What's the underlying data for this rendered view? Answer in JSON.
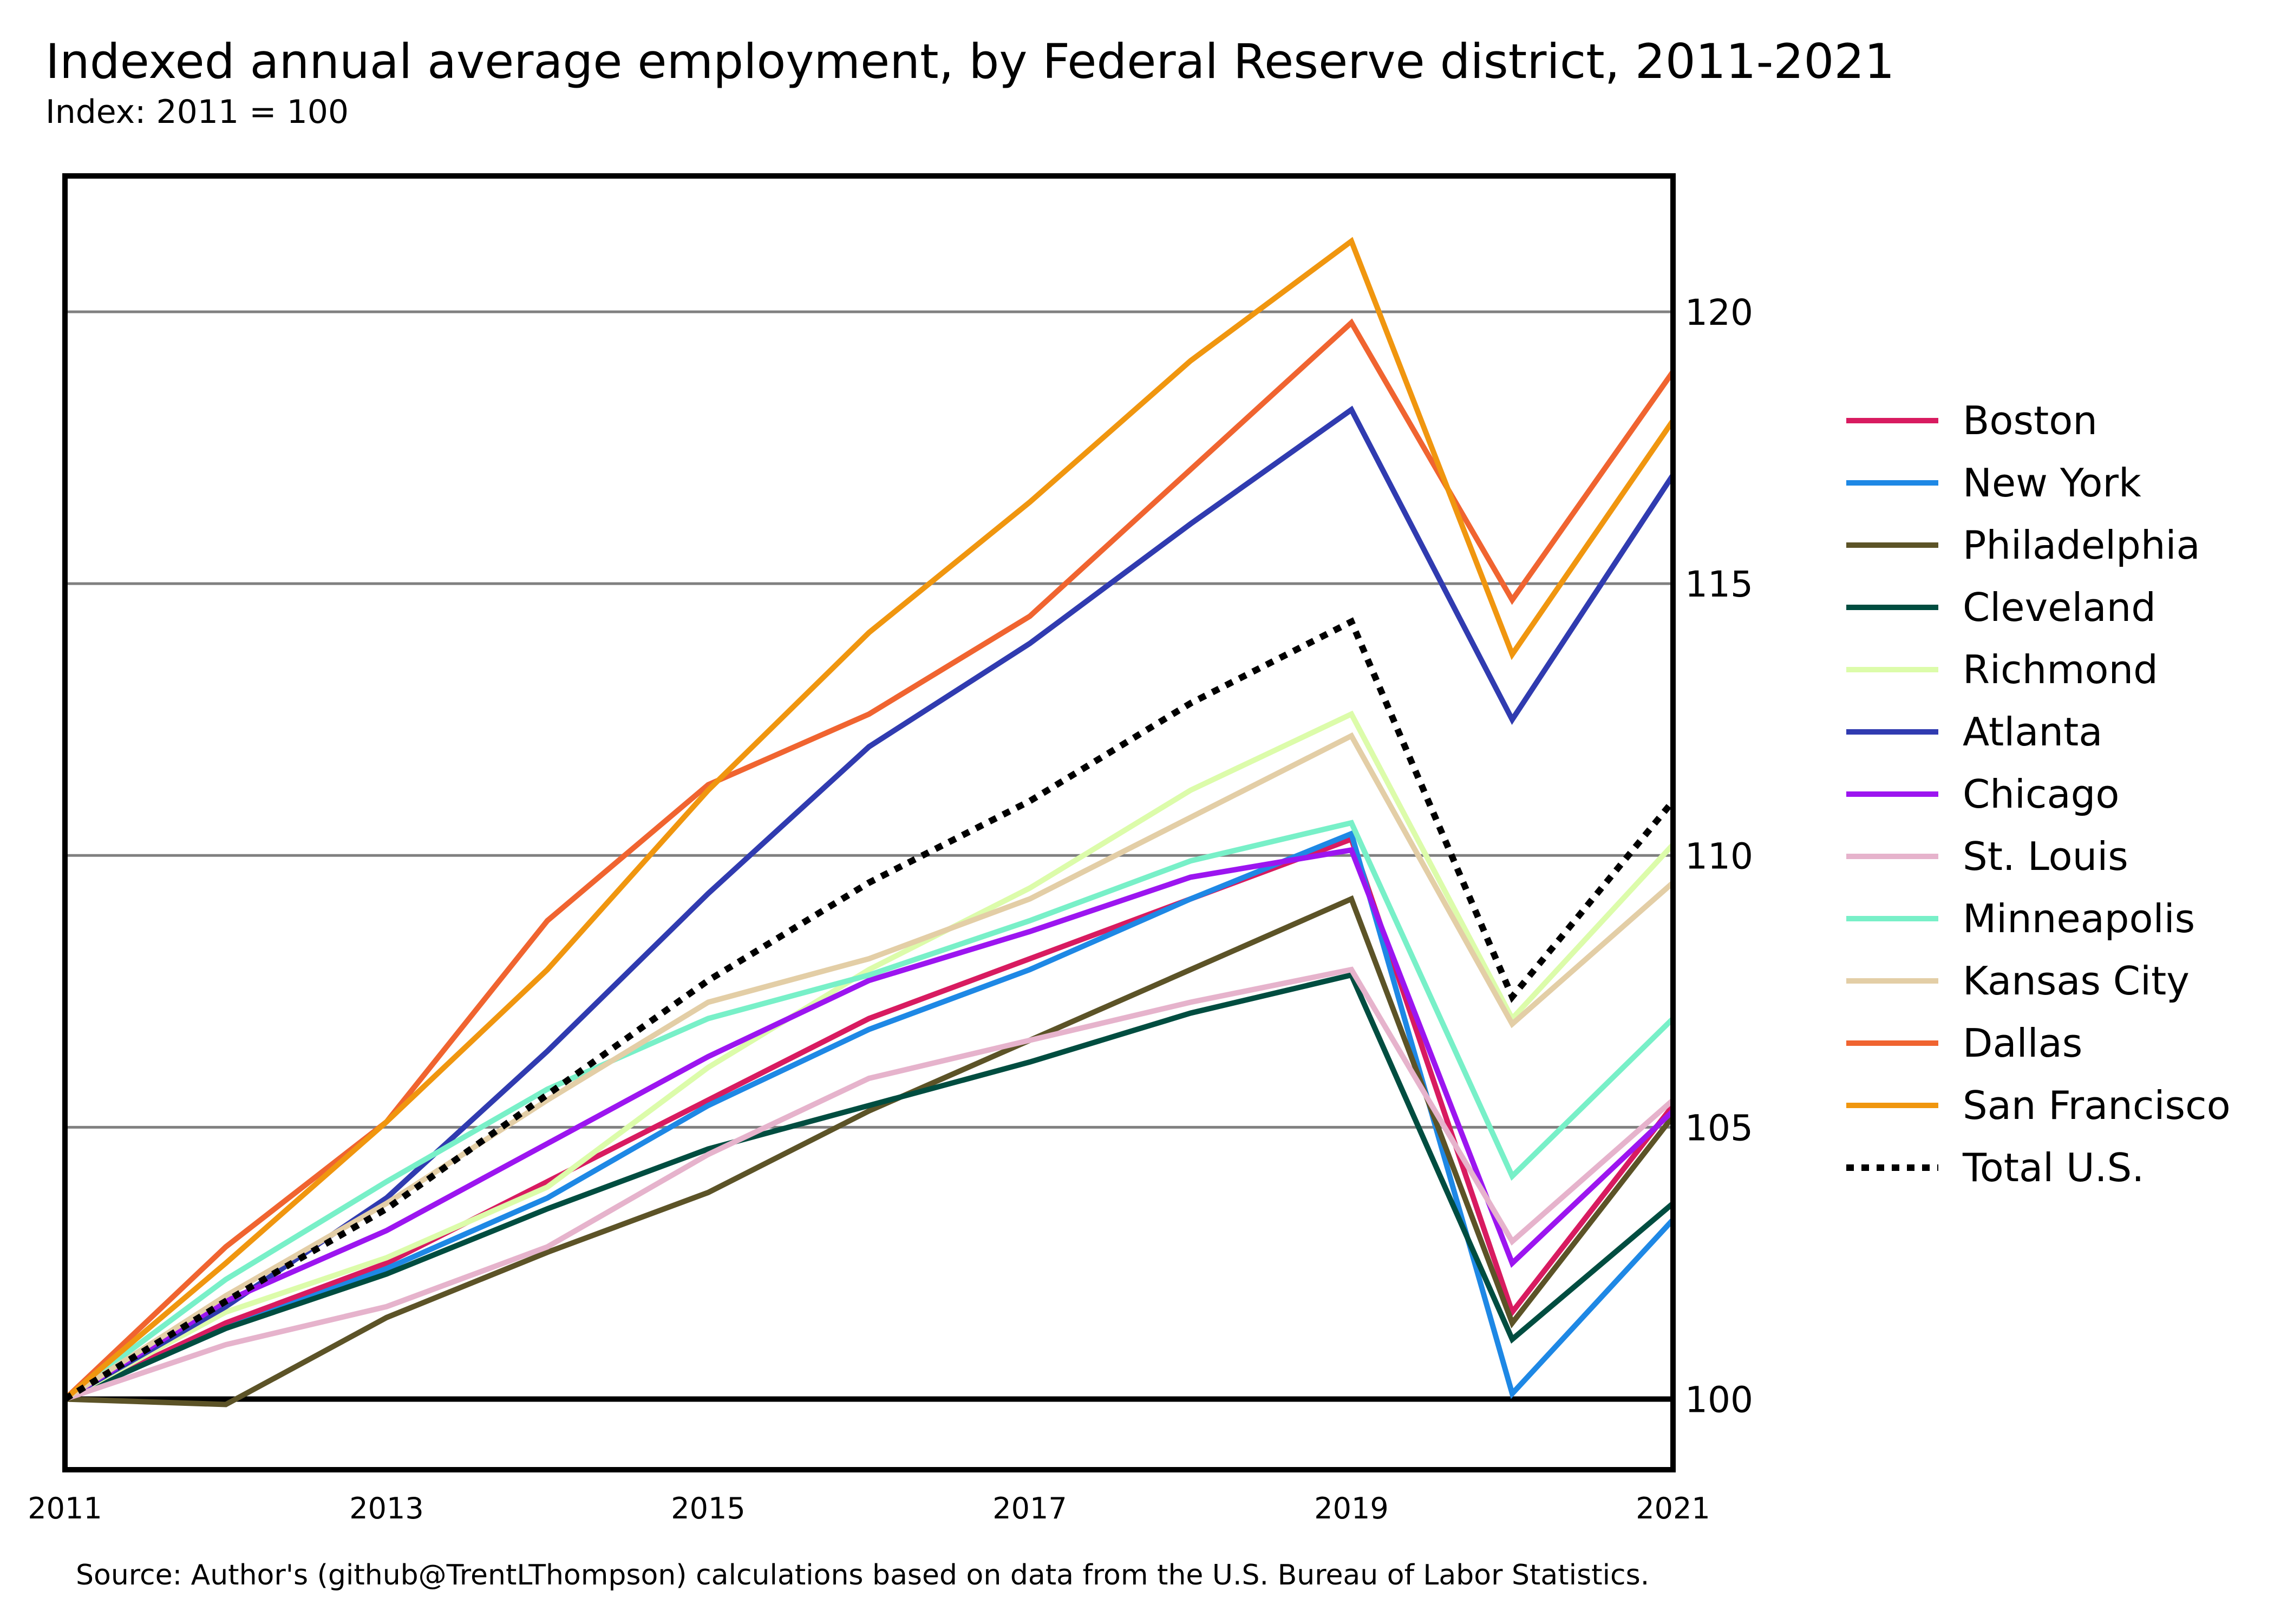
{
  "chart_data": {
    "type": "line",
    "title": "Indexed annual average employment, by Federal Reserve district, 2011-2021",
    "subtitle": "Index: 2011 = 100",
    "source": "Source: Author's (github@TrentLThompson) calculations based on data from the U.S. Bureau of Labor Statistics.",
    "xlabel": "",
    "ylabel": "",
    "x": [
      2011,
      2012,
      2013,
      2014,
      2015,
      2016,
      2017,
      2018,
      2019,
      2020,
      2021
    ],
    "x_ticks": [
      "2011",
      "2013",
      "2015",
      "2017",
      "2019",
      "2021"
    ],
    "y_ticks": [
      "100",
      "105",
      "110",
      "115",
      "120"
    ],
    "xlim": [
      2011,
      2021
    ],
    "ylim": [
      98.7,
      122.5
    ],
    "grid": "horizontal",
    "y_axis_side": "right",
    "legend_position": "right",
    "series": [
      {
        "name": "Boston",
        "color": "#d81b60",
        "dash": false,
        "values": [
          100,
          101.4,
          102.5,
          104.0,
          105.5,
          107.0,
          108.1,
          109.2,
          110.3,
          101.6,
          105.4
        ]
      },
      {
        "name": "New York",
        "color": "#1e88e5",
        "dash": false,
        "values": [
          100,
          101.3,
          102.4,
          103.7,
          105.4,
          106.8,
          107.9,
          109.2,
          110.4,
          100.1,
          103.3
        ]
      },
      {
        "name": "Philadelphia",
        "color": "#5c5327",
        "dash": false,
        "values": [
          100,
          99.9,
          101.5,
          102.7,
          103.8,
          105.3,
          106.6,
          107.9,
          109.2,
          101.4,
          105.2
        ]
      },
      {
        "name": "Cleveland",
        "color": "#004d40",
        "dash": false,
        "values": [
          100,
          101.3,
          102.3,
          103.5,
          104.6,
          105.4,
          106.2,
          107.1,
          107.8,
          101.1,
          103.6
        ]
      },
      {
        "name": "Richmond",
        "color": "#dcfcaa",
        "dash": false,
        "values": [
          100,
          101.6,
          102.6,
          103.9,
          106.1,
          107.9,
          109.4,
          111.2,
          112.6,
          107.0,
          110.2
        ]
      },
      {
        "name": "Atlanta",
        "color": "#303bb0",
        "dash": false,
        "values": [
          100,
          101.7,
          103.7,
          106.4,
          109.3,
          112.0,
          113.9,
          116.1,
          118.2,
          112.5,
          117.0
        ]
      },
      {
        "name": "Chicago",
        "color": "#9c15f0",
        "dash": false,
        "values": [
          100,
          101.8,
          103.1,
          104.7,
          106.3,
          107.7,
          108.6,
          109.6,
          110.1,
          102.5,
          105.3
        ]
      },
      {
        "name": "St. Louis",
        "color": "#e6b3cc",
        "dash": false,
        "values": [
          100,
          101.0,
          101.7,
          102.8,
          104.5,
          105.9,
          106.6,
          107.3,
          107.9,
          102.9,
          105.5
        ]
      },
      {
        "name": "Minneapolis",
        "color": "#78f0c8",
        "dash": false,
        "values": [
          100,
          102.2,
          104.0,
          105.7,
          107.0,
          107.8,
          108.8,
          109.9,
          110.6,
          104.1,
          107.0
        ]
      },
      {
        "name": "Kansas City",
        "color": "#e3cea6",
        "dash": false,
        "values": [
          100,
          101.9,
          103.6,
          105.5,
          107.3,
          108.1,
          109.2,
          110.7,
          112.2,
          106.9,
          109.5
        ]
      },
      {
        "name": "Dallas",
        "color": "#f06430",
        "dash": false,
        "values": [
          100,
          102.8,
          105.1,
          108.8,
          111.3,
          112.6,
          114.4,
          117.1,
          119.8,
          114.7,
          118.9
        ]
      },
      {
        "name": "San Francisco",
        "color": "#f0960f",
        "dash": false,
        "values": [
          100,
          102.5,
          105.1,
          107.9,
          111.2,
          114.1,
          116.5,
          119.1,
          121.3,
          113.7,
          118.0
        ]
      },
      {
        "name": "Total U.S.",
        "color": "#000000",
        "dash": true,
        "values": [
          100,
          101.8,
          103.5,
          105.6,
          107.7,
          109.5,
          111.0,
          112.8,
          114.3,
          107.4,
          111.0
        ]
      }
    ]
  }
}
